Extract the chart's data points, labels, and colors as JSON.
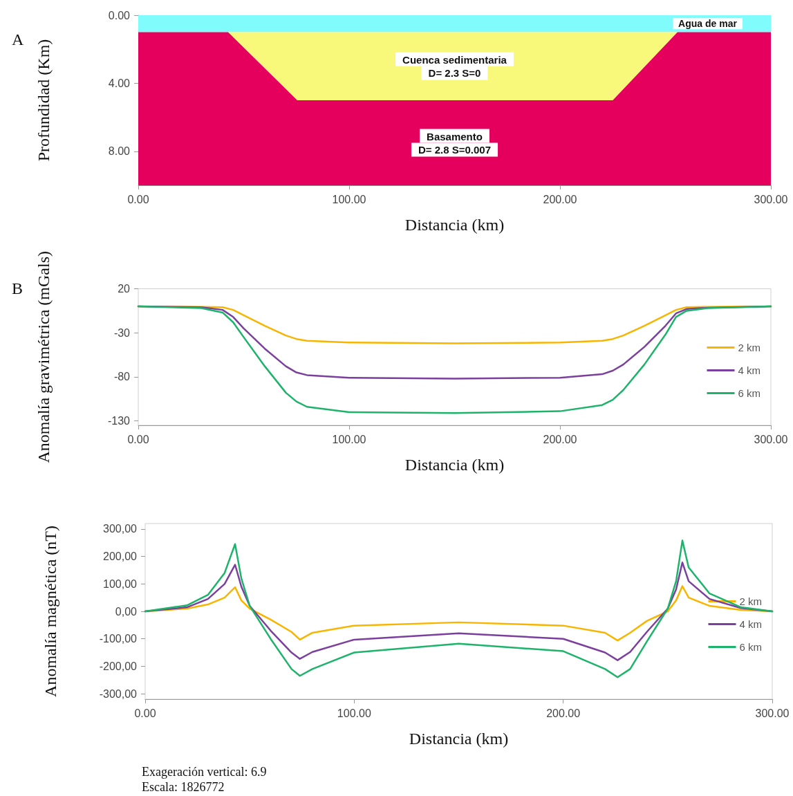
{
  "chart_data": [
    {
      "type": "area",
      "title": "A",
      "xlabel": "Distancia (km)",
      "ylabel": "Profundidad (Km)",
      "stacked": true,
      "x": [
        0,
        42.6,
        75.4,
        225,
        255.7,
        300
      ],
      "series": [
        {
          "name": "Agua de mar",
          "color": "#80fcfc",
          "values": [
            1,
            1,
            1,
            1,
            1,
            1
          ]
        },
        {
          "name": "Cuenca sedimentaria",
          "color": "#f8f87a",
          "values": [
            0,
            0,
            4,
            4,
            0,
            0
          ]
        },
        {
          "name": "Basamento",
          "color": "#e6005e",
          "values": [
            9,
            9,
            5,
            5,
            9,
            9
          ]
        }
      ],
      "annotations": [
        "D= 2.3 S=0",
        "D= 2.8 S=0.007"
      ],
      "xlim": [
        0,
        300
      ],
      "xticks": [
        {
          "value": 0,
          "label": "0.00"
        },
        {
          "value": 100,
          "label": "100.00"
        },
        {
          "value": 200,
          "label": "200.00"
        },
        {
          "value": 300,
          "label": "300.00"
        }
      ],
      "ylim": [
        10,
        0
      ],
      "yticks": [
        {
          "value": 0,
          "label": "0.00"
        },
        {
          "value": 4,
          "label": "4.00"
        },
        {
          "value": 8,
          "label": "8.00"
        }
      ],
      "legend": false,
      "grid": false
    },
    {
      "type": "line",
      "title": "B",
      "xlabel": "Distancia (km)",
      "ylabel": "Anomalía gravimétrica (mGals)",
      "x": [
        0,
        30,
        40,
        45,
        50,
        60,
        70,
        75,
        80,
        100,
        150,
        200,
        220,
        225,
        230,
        240,
        250,
        255,
        260,
        270,
        300
      ],
      "series": [
        {
          "name": "2 km",
          "color": "#f7b500",
          "values": [
            0,
            -0.5,
            -1,
            -4,
            -10,
            -22,
            -33,
            -37,
            -39,
            -41,
            -42,
            -41,
            -39,
            -37,
            -33,
            -22,
            -10,
            -4,
            -1,
            -0.5,
            0
          ]
        },
        {
          "name": "4 km",
          "color": "#7b3f9e",
          "values": [
            0,
            -1,
            -4,
            -12,
            -25,
            -48,
            -68,
            -75,
            -78,
            -81,
            -82,
            -81,
            -77,
            -73,
            -66,
            -46,
            -22,
            -8,
            -3,
            -1.5,
            0
          ]
        },
        {
          "name": "6 km",
          "color": "#1db36b",
          "values": [
            0,
            -2,
            -7,
            -18,
            -35,
            -68,
            -98,
            -108,
            -114,
            -120,
            -121,
            -119,
            -112,
            -106,
            -95,
            -66,
            -32,
            -12,
            -5,
            -2,
            0
          ]
        }
      ],
      "xlim": [
        0,
        300
      ],
      "xticks": [
        {
          "value": 0,
          "label": "0.00"
        },
        {
          "value": 100,
          "label": "100.00"
        },
        {
          "value": 200,
          "label": "200.00"
        },
        {
          "value": 300,
          "label": "300.00"
        }
      ],
      "ylim": [
        -135,
        20
      ],
      "yticks": [
        20,
        -30,
        -80,
        -130
      ],
      "legend": "right",
      "grid": false,
      "marker": "none",
      "line_style": "solid"
    },
    {
      "type": "line",
      "xlabel": "Distancia (km)",
      "ylabel": "Anomalía magnética (nT)",
      "x": [
        0,
        20,
        30,
        38,
        43,
        46,
        50,
        60,
        70,
        74,
        80,
        100,
        150,
        200,
        220,
        226,
        232,
        240,
        250,
        254,
        257,
        260,
        270,
        285,
        300
      ],
      "series": [
        {
          "name": "2 km",
          "color": "#f7b500",
          "values": [
            0,
            10,
            25,
            50,
            88,
            40,
            10,
            -30,
            -75,
            -103,
            -78,
            -52,
            -40,
            -52,
            -78,
            -106,
            -78,
            -35,
            0,
            40,
            92,
            50,
            20,
            5,
            0
          ]
        },
        {
          "name": "4 km",
          "color": "#7b3f9e",
          "values": [
            0,
            15,
            45,
            100,
            170,
            90,
            20,
            -70,
            -150,
            -173,
            -148,
            -103,
            -80,
            -100,
            -150,
            -178,
            -148,
            -75,
            10,
            80,
            178,
            110,
            45,
            12,
            0
          ]
        },
        {
          "name": "6 km",
          "color": "#1db36b",
          "values": [
            0,
            22,
            60,
            140,
            245,
            120,
            20,
            -100,
            -210,
            -235,
            -210,
            -150,
            -118,
            -145,
            -210,
            -240,
            -210,
            -110,
            10,
            110,
            258,
            160,
            65,
            15,
            0
          ]
        }
      ],
      "annotations": [
        "Exageración vertical: 6.9",
        "Escala: 1826772"
      ],
      "xlim": [
        0,
        300
      ],
      "xticks": [
        {
          "value": 0,
          "label": "0.00"
        },
        {
          "value": 100,
          "label": "100.00"
        },
        {
          "value": 200,
          "label": "200.00"
        },
        {
          "value": 300,
          "label": "300.00"
        }
      ],
      "ylim": [
        -320,
        320
      ],
      "yticks": [
        {
          "value": 300,
          "label": "300,00"
        },
        {
          "value": 200,
          "label": "200,00"
        },
        {
          "value": 100,
          "label": "100,00"
        },
        {
          "value": 0,
          "label": "0,00"
        },
        {
          "value": -100,
          "label": "-100,00"
        },
        {
          "value": -200,
          "label": "-200,00"
        },
        {
          "value": -300,
          "label": "-300,00"
        }
      ],
      "legend": "right",
      "grid": false,
      "marker": "none",
      "line_style": "solid"
    }
  ]
}
